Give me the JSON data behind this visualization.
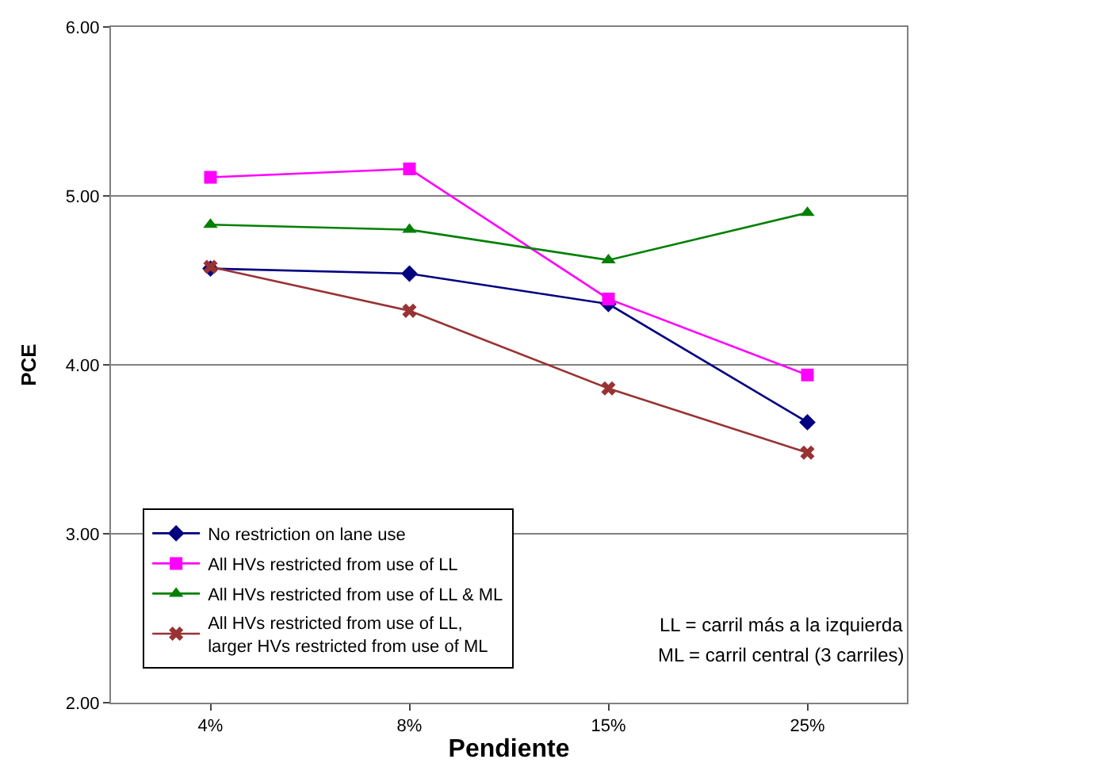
{
  "chart_data": {
    "type": "line",
    "xlabel": "Pendiente",
    "ylabel": "PCE",
    "categories": [
      "4%",
      "8%",
      "15%",
      "25%"
    ],
    "series": [
      {
        "name": "No restriction on lane use",
        "color": "#000080",
        "marker": "diamond",
        "values": [
          4.57,
          4.54,
          4.36,
          3.66
        ]
      },
      {
        "name": "All HVs restricted from use of LL",
        "color": "#ff00ff",
        "marker": "square",
        "values": [
          5.11,
          5.16,
          4.39,
          3.94
        ]
      },
      {
        "name": "All HVs restricted from use of LL & ML",
        "color": "#008000",
        "marker": "triangle",
        "values": [
          4.83,
          4.8,
          4.62,
          4.9
        ]
      },
      {
        "name": "All HVs restricted from use of LL, larger HVs restricted from use of ML",
        "color": "#993333",
        "marker": "cross",
        "values": [
          4.58,
          4.32,
          3.86,
          3.48
        ]
      }
    ],
    "ylim": [
      2,
      6
    ],
    "yticks": [
      {
        "value": 2,
        "label": "2.00"
      },
      {
        "value": 3,
        "label": "3.00"
      },
      {
        "value": 4,
        "label": "4.00"
      },
      {
        "value": 5,
        "label": "5.00"
      },
      {
        "value": 6,
        "label": "6.00"
      }
    ],
    "grid": "y",
    "legend": "bottom left",
    "line_style": "solid",
    "annotations": [
      "LL = carril más a la izquierda",
      "ML = carril central (3 carriles)"
    ]
  }
}
